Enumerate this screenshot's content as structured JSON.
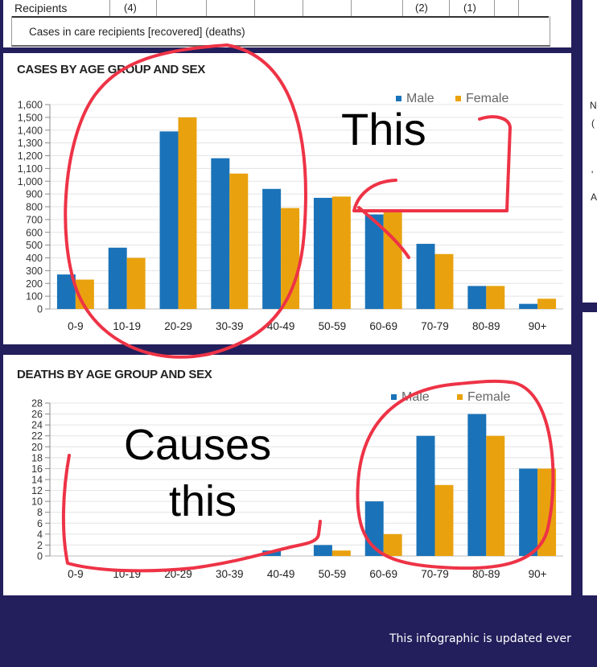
{
  "table": {
    "row_label": "Recipients",
    "cells": [
      "(4)",
      "(2)",
      "(1)"
    ],
    "caption": "Cases in care recipients [recovered] (deaths)"
  },
  "side_fragments": [
    "N",
    "(",
    "'",
    "A"
  ],
  "footer": {
    "text": "This infographic is updated ever"
  },
  "annotations": {
    "top": "This",
    "bottom_line1": "Causes",
    "bottom_line2": "this"
  },
  "colors": {
    "male": "#1a73b8",
    "female": "#e9a20e",
    "navy": "#231f5c",
    "annotation": "#ee3346"
  },
  "chart_data": [
    {
      "type": "bar",
      "title": "CASES BY AGE GROUP AND SEX",
      "categories": [
        "0-9",
        "10-19",
        "20-29",
        "30-39",
        "40-49",
        "50-59",
        "60-69",
        "70-79",
        "80-89",
        "90+"
      ],
      "series": [
        {
          "name": "Male",
          "values": [
            270,
            480,
            1390,
            1180,
            940,
            870,
            740,
            510,
            180,
            40
          ]
        },
        {
          "name": "Female",
          "values": [
            230,
            400,
            1500,
            1060,
            790,
            880,
            780,
            430,
            180,
            80
          ]
        }
      ],
      "yticks": [
        "0",
        "100",
        "200",
        "300",
        "400",
        "500",
        "600",
        "700",
        "800",
        "900",
        "1,000",
        "1,100",
        "1,200",
        "1,300",
        "1,400",
        "1,500",
        "1,600"
      ],
      "ylim": [
        0,
        1600
      ],
      "legend": "top-right",
      "grid": true
    },
    {
      "type": "bar",
      "title": "DEATHS BY AGE GROUP AND SEX",
      "categories": [
        "0-9",
        "10-19",
        "20-29",
        "30-39",
        "40-49",
        "50-59",
        "60-69",
        "70-79",
        "80-89",
        "90+"
      ],
      "series": [
        {
          "name": "Male",
          "values": [
            0,
            0,
            0,
            0,
            1,
            2,
            10,
            22,
            26,
            16
          ]
        },
        {
          "name": "Female",
          "values": [
            0,
            0,
            0,
            0,
            0,
            1,
            4,
            13,
            22,
            16
          ]
        }
      ],
      "yticks": [
        "0",
        "2",
        "4",
        "6",
        "8",
        "10",
        "12",
        "14",
        "16",
        "18",
        "20",
        "22",
        "24",
        "26",
        "28"
      ],
      "ylim": [
        0,
        28
      ],
      "legend": "top-right",
      "grid": true
    }
  ]
}
